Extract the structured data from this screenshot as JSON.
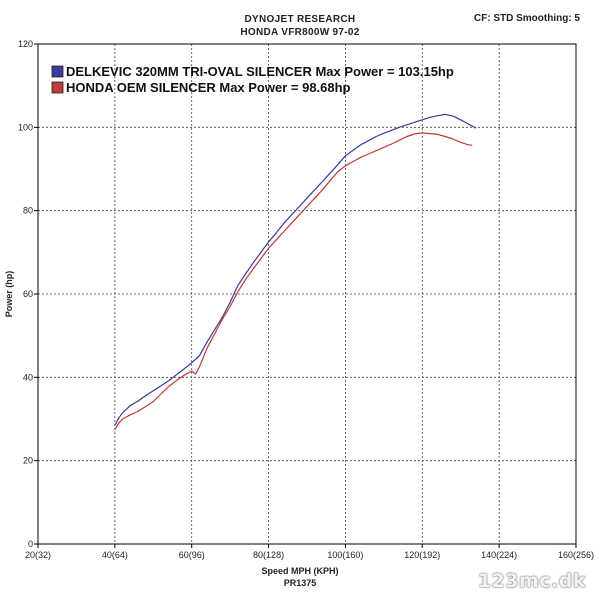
{
  "header": {
    "title": "DYNOJET RESEARCH",
    "subtitle": "HONDA VFR800W 97-02",
    "settings": "CF: STD  Smoothing: 5"
  },
  "watermark": "123mc.dk",
  "chart_data": {
    "type": "line",
    "xlabel": "Speed MPH (KPH)",
    "xlabel2": "PR1375",
    "ylabel": "Power (hp)",
    "xlim": [
      20,
      160
    ],
    "ylim": [
      0,
      120
    ],
    "x_ticks": [
      20,
      40,
      60,
      80,
      100,
      120,
      140,
      160
    ],
    "x_tick_labels": [
      "20(32)",
      "40(64)",
      "60(96)",
      "80(128)",
      "100(160)",
      "120(192)",
      "140(224)",
      "160(256)"
    ],
    "y_ticks": [
      0,
      20,
      40,
      60,
      80,
      100,
      120
    ],
    "y_tick_labels": [
      "0",
      "20",
      "40",
      "60",
      "80",
      "100",
      "120"
    ],
    "grid": true,
    "legend_position": "top-left",
    "series": [
      {
        "name": "DELKEVIC 320MM TRI-OVAL SILENCER  Max Power = 103.15hp",
        "color": "#3b3b9b",
        "x": [
          40,
          41,
          42,
          44,
          46,
          48,
          50,
          52,
          54,
          56,
          58,
          60,
          62,
          64,
          66,
          68,
          70,
          72,
          74,
          76,
          78,
          80,
          82,
          84,
          86,
          88,
          90,
          92,
          94,
          96,
          98,
          100,
          102,
          104,
          106,
          108,
          110,
          112,
          114,
          116,
          118,
          120,
          122,
          124,
          126,
          128,
          130,
          132,
          134
        ],
        "y": [
          28.5,
          30.2,
          31.5,
          33.2,
          34.3,
          35.6,
          36.8,
          38.0,
          39.2,
          40.6,
          42.0,
          43.5,
          45.2,
          48.5,
          51.5,
          54.5,
          58.0,
          62.0,
          64.8,
          67.5,
          70.0,
          72.5,
          74.7,
          77.0,
          79.0,
          81.0,
          83.0,
          85.0,
          87.0,
          89.0,
          91.0,
          93.2,
          94.5,
          95.8,
          96.8,
          97.8,
          98.6,
          99.3,
          100.0,
          100.6,
          101.2,
          101.8,
          102.4,
          102.8,
          103.1,
          102.7,
          101.8,
          100.8,
          99.8
        ]
      },
      {
        "name": "HONDA OEM SILENCER Max Power = 98.68hp",
        "color": "#c0393b",
        "x": [
          40,
          41,
          42,
          44,
          46,
          48,
          50,
          52,
          54,
          56,
          58,
          60,
          61,
          62,
          64,
          66,
          68,
          70,
          72,
          74,
          76,
          78,
          80,
          82,
          84,
          86,
          88,
          90,
          92,
          94,
          96,
          98,
          100,
          102,
          104,
          106,
          108,
          110,
          112,
          114,
          116,
          118,
          120,
          122,
          124,
          126,
          128,
          130,
          132,
          133
        ],
        "y": [
          27.5,
          29.0,
          30.0,
          31.0,
          31.8,
          33.0,
          34.2,
          36.0,
          37.8,
          39.2,
          40.5,
          41.5,
          40.8,
          42.5,
          47.0,
          50.5,
          54.0,
          57.0,
          60.5,
          63.5,
          66.0,
          68.5,
          71.0,
          73.0,
          75.0,
          77.0,
          79.0,
          81.0,
          83.0,
          85.0,
          87.2,
          89.3,
          90.8,
          91.8,
          92.8,
          93.6,
          94.4,
          95.2,
          96.0,
          96.9,
          97.8,
          98.4,
          98.7,
          98.5,
          98.3,
          97.8,
          97.2,
          96.4,
          95.8,
          95.7
        ]
      }
    ]
  }
}
